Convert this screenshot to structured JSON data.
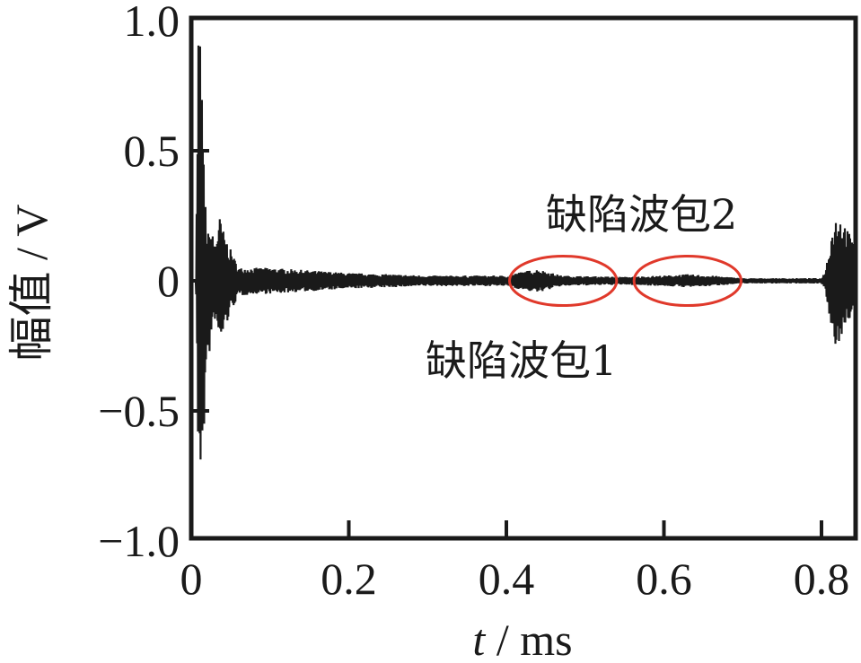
{
  "chart_data": {
    "type": "line",
    "title": "",
    "xlabel_var": "t",
    "xlabel_unit": " / ms",
    "ylabel": "幅值 / V",
    "xlim": [
      0,
      0.85
    ],
    "ylim": [
      -1.0,
      1.0
    ],
    "x_ticks": [
      0,
      0.2,
      0.4,
      0.6,
      0.8
    ],
    "x_tick_labels": [
      "0",
      "0.2",
      "0.4",
      "0.6",
      "0.8"
    ],
    "y_ticks": [
      1.0,
      0.5,
      0,
      -0.5,
      -1.0
    ],
    "y_tick_labels": [
      "1.0",
      "0.5",
      "0",
      "−0.5",
      "−1.0"
    ],
    "grid": false,
    "line_color": "#1a1a1a",
    "series": [
      {
        "envelope": {
          "t": [
            0,
            0.006,
            0.009,
            0.012,
            0.016,
            0.02,
            0.025,
            0.03,
            0.036,
            0.042,
            0.05,
            0.06,
            0.08,
            0.1,
            0.15,
            0.2,
            0.3,
            0.4,
            0.42,
            0.44,
            0.47,
            0.5,
            0.55,
            0.6,
            0.63,
            0.66,
            0.7,
            0.75,
            0.8,
            0.805,
            0.812,
            0.82,
            0.83,
            0.84,
            0.85
          ],
          "upper": [
            0,
            0,
            1.05,
            0.9,
            0.45,
            0.18,
            0.2,
            0.15,
            0.25,
            0.18,
            0.12,
            0.05,
            0.05,
            0.05,
            0.04,
            0.03,
            0.02,
            0.02,
            0.035,
            0.045,
            0.02,
            0.018,
            0.015,
            0.02,
            0.025,
            0.02,
            0.01,
            0.01,
            0.01,
            0.04,
            0.18,
            0.27,
            0.22,
            0.15,
            0.12
          ],
          "lower": [
            0,
            0,
            -0.8,
            -0.75,
            -0.6,
            -0.35,
            -0.25,
            -0.15,
            -0.25,
            -0.2,
            -0.12,
            -0.06,
            -0.05,
            -0.05,
            -0.04,
            -0.03,
            -0.02,
            -0.02,
            -0.035,
            -0.045,
            -0.02,
            -0.018,
            -0.015,
            -0.02,
            -0.025,
            -0.02,
            -0.01,
            -0.01,
            -0.01,
            -0.04,
            -0.2,
            -0.27,
            -0.18,
            -0.12,
            -0.1
          ]
        }
      }
    ],
    "annotations": [
      {
        "label": "缺陷波包1",
        "ellipse_center": [
          0.472,
          0
        ],
        "ellipse_radii": [
          0.068,
          0.095
        ],
        "color": "#e0392b"
      },
      {
        "label": "缺陷波包2",
        "ellipse_center": [
          0.63,
          0
        ],
        "ellipse_radii": [
          0.068,
          0.095
        ],
        "color": "#e0392b"
      }
    ]
  }
}
